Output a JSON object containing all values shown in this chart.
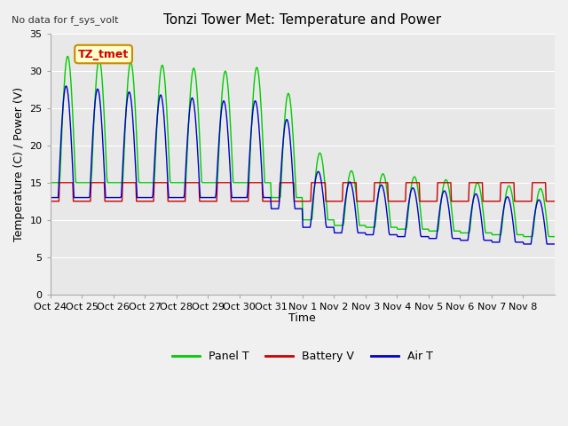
{
  "title": "Tonzi Tower Met: Temperature and Power",
  "no_data_text": "No data for f_sys_volt",
  "ylabel": "Temperature (C) / Power (V)",
  "xlabel": "Time",
  "annotation_text": "TZ_tmet",
  "ylim": [
    0,
    35
  ],
  "yticks": [
    0,
    5,
    10,
    15,
    20,
    25,
    30,
    35
  ],
  "xtick_labels": [
    "Oct 24",
    "Oct 25",
    "Oct 26",
    "Oct 27",
    "Oct 28",
    "Oct 29",
    "Oct 30",
    "Oct 31",
    "Nov 1",
    "Nov 2",
    "Nov 3",
    "Nov 4",
    "Nov 5",
    "Nov 6",
    "Nov 7",
    "Nov 8"
  ],
  "fig_bg_color": "#f0f0f0",
  "plot_bg_color": "#e8e8e8",
  "grid_color": "#ffffff",
  "panel_T_color": "#00cc00",
  "battery_V_color": "#cc0000",
  "air_T_color": "#0000cc",
  "legend": [
    "Panel T",
    "Battery V",
    "Air T"
  ],
  "n_days": 16
}
